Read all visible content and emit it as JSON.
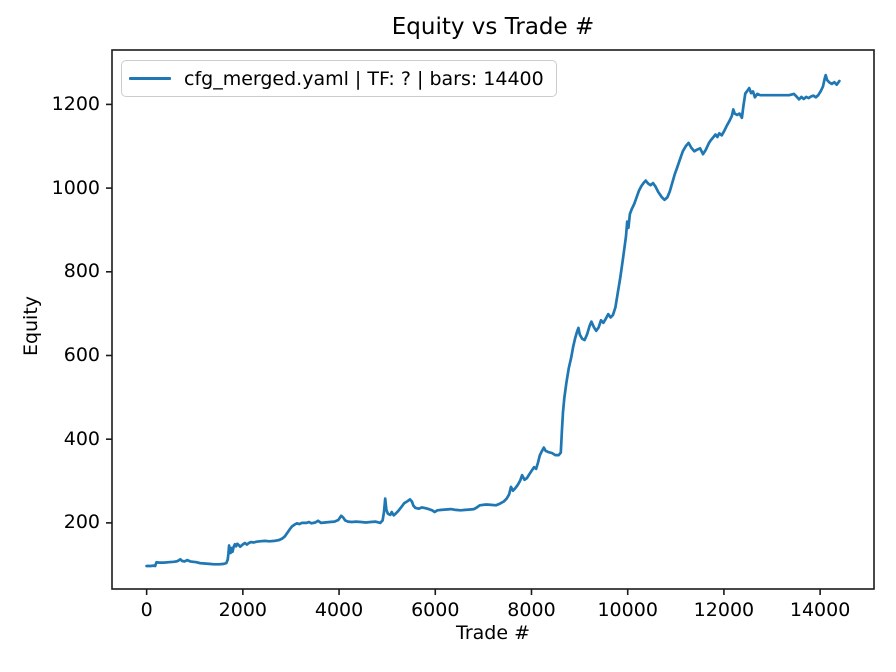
{
  "figure": {
    "background": "#ffffff",
    "text_color": "#000000",
    "spine_color": "#1a1a1a"
  },
  "chart_data": {
    "type": "line",
    "title": "Equity vs Trade #",
    "xlabel": "Trade #",
    "ylabel": "Equity",
    "grid": false,
    "legend_position": "upper left",
    "xlim": [
      -720,
      15120
    ],
    "ylim": [
      42,
      1330
    ],
    "x_ticks": [
      0,
      2000,
      4000,
      6000,
      8000,
      10000,
      12000,
      14000
    ],
    "y_ticks": [
      200,
      400,
      600,
      800,
      1000,
      1200
    ],
    "series": [
      {
        "name": "cfg_merged.yaml | TF: ? | bars: 14400",
        "color": "#1f77b4",
        "points": [
          [
            0,
            97
          ],
          [
            80,
            97
          ],
          [
            150,
            98
          ],
          [
            175,
            97
          ],
          [
            205,
            106
          ],
          [
            260,
            105
          ],
          [
            360,
            105
          ],
          [
            460,
            106
          ],
          [
            560,
            107
          ],
          [
            625,
            108
          ],
          [
            665,
            110
          ],
          [
            700,
            113
          ],
          [
            740,
            109
          ],
          [
            790,
            108
          ],
          [
            845,
            111
          ],
          [
            905,
            108
          ],
          [
            965,
            107
          ],
          [
            1035,
            106
          ],
          [
            1105,
            104
          ],
          [
            1205,
            103
          ],
          [
            1305,
            102
          ],
          [
            1405,
            101
          ],
          [
            1505,
            101
          ],
          [
            1605,
            102
          ],
          [
            1655,
            104
          ],
          [
            1685,
            112
          ],
          [
            1700,
            126
          ],
          [
            1715,
            146
          ],
          [
            1730,
            133
          ],
          [
            1745,
            128
          ],
          [
            1765,
            140
          ],
          [
            1785,
            131
          ],
          [
            1810,
            143
          ],
          [
            1835,
            149
          ],
          [
            1860,
            144
          ],
          [
            1885,
            150
          ],
          [
            1915,
            147
          ],
          [
            1945,
            143
          ],
          [
            1975,
            146
          ],
          [
            2005,
            149
          ],
          [
            2045,
            152
          ],
          [
            2085,
            148
          ],
          [
            2125,
            152
          ],
          [
            2165,
            154
          ],
          [
            2225,
            153
          ],
          [
            2285,
            155
          ],
          [
            2355,
            156
          ],
          [
            2455,
            157
          ],
          [
            2555,
            156
          ],
          [
            2655,
            157
          ],
          [
            2755,
            159
          ],
          [
            2825,
            163
          ],
          [
            2875,
            168
          ],
          [
            2925,
            176
          ],
          [
            2975,
            185
          ],
          [
            3025,
            192
          ],
          [
            3075,
            196
          ],
          [
            3125,
            199
          ],
          [
            3175,
            197
          ],
          [
            3225,
            200
          ],
          [
            3325,
            200
          ],
          [
            3375,
            202
          ],
          [
            3425,
            199
          ],
          [
            3505,
            201
          ],
          [
            3565,
            205
          ],
          [
            3625,
            200
          ],
          [
            3705,
            201
          ],
          [
            3805,
            202
          ],
          [
            3905,
            203
          ],
          [
            3985,
            207
          ],
          [
            4045,
            217
          ],
          [
            4085,
            213
          ],
          [
            4125,
            206
          ],
          [
            4185,
            203
          ],
          [
            4265,
            202
          ],
          [
            4355,
            203
          ],
          [
            4455,
            202
          ],
          [
            4555,
            201
          ],
          [
            4655,
            202
          ],
          [
            4755,
            203
          ],
          [
            4855,
            200
          ],
          [
            4905,
            206
          ],
          [
            4935,
            226
          ],
          [
            4960,
            258
          ],
          [
            4985,
            231
          ],
          [
            5015,
            222
          ],
          [
            5065,
            219
          ],
          [
            5095,
            226
          ],
          [
            5135,
            218
          ],
          [
            5175,
            222
          ],
          [
            5235,
            229
          ],
          [
            5295,
            238
          ],
          [
            5355,
            247
          ],
          [
            5425,
            252
          ],
          [
            5475,
            256
          ],
          [
            5515,
            251
          ],
          [
            5545,
            241
          ],
          [
            5585,
            236
          ],
          [
            5655,
            234
          ],
          [
            5725,
            237
          ],
          [
            5795,
            235
          ],
          [
            5865,
            233
          ],
          [
            5935,
            230
          ],
          [
            5985,
            226
          ],
          [
            6045,
            230
          ],
          [
            6125,
            231
          ],
          [
            6225,
            232
          ],
          [
            6325,
            233
          ],
          [
            6425,
            231
          ],
          [
            6525,
            230
          ],
          [
            6625,
            231
          ],
          [
            6725,
            232
          ],
          [
            6805,
            233
          ],
          [
            6865,
            237
          ],
          [
            6925,
            242
          ],
          [
            6985,
            243
          ],
          [
            7065,
            244
          ],
          [
            7165,
            243
          ],
          [
            7265,
            242
          ],
          [
            7345,
            246
          ],
          [
            7425,
            251
          ],
          [
            7485,
            258
          ],
          [
            7535,
            268
          ],
          [
            7575,
            286
          ],
          [
            7615,
            277
          ],
          [
            7665,
            283
          ],
          [
            7715,
            291
          ],
          [
            7765,
            301
          ],
          [
            7805,
            314
          ],
          [
            7855,
            303
          ],
          [
            7905,
            307
          ],
          [
            7955,
            316
          ],
          [
            8005,
            325
          ],
          [
            8055,
            333
          ],
          [
            8095,
            329
          ],
          [
            8135,
            344
          ],
          [
            8175,
            362
          ],
          [
            8215,
            371
          ],
          [
            8255,
            380
          ],
          [
            8295,
            372
          ],
          [
            8355,
            369
          ],
          [
            8425,
            367
          ],
          [
            8495,
            362
          ],
          [
            8565,
            362
          ],
          [
            8610,
            368
          ],
          [
            8632,
            420
          ],
          [
            8655,
            465
          ],
          [
            8685,
            500
          ],
          [
            8725,
            535
          ],
          [
            8775,
            570
          ],
          [
            8825,
            595
          ],
          [
            8865,
            620
          ],
          [
            8905,
            640
          ],
          [
            8945,
            656
          ],
          [
            8975,
            666
          ],
          [
            9005,
            650
          ],
          [
            9055,
            640
          ],
          [
            9105,
            637
          ],
          [
            9155,
            650
          ],
          [
            9205,
            670
          ],
          [
            9245,
            681
          ],
          [
            9295,
            668
          ],
          [
            9345,
            659
          ],
          [
            9395,
            667
          ],
          [
            9445,
            684
          ],
          [
            9495,
            678
          ],
          [
            9545,
            688
          ],
          [
            9595,
            699
          ],
          [
            9645,
            691
          ],
          [
            9695,
            697
          ],
          [
            9745,
            715
          ],
          [
            9795,
            750
          ],
          [
            9845,
            785
          ],
          [
            9895,
            825
          ],
          [
            9935,
            860
          ],
          [
            9965,
            885
          ],
          [
            9990,
            920
          ],
          [
            10015,
            905
          ],
          [
            10045,
            938
          ],
          [
            10085,
            950
          ],
          [
            10135,
            962
          ],
          [
            10185,
            978
          ],
          [
            10235,
            994
          ],
          [
            10285,
            1005
          ],
          [
            10335,
            1013
          ],
          [
            10375,
            1018
          ],
          [
            10425,
            1011
          ],
          [
            10475,
            1007
          ],
          [
            10525,
            1012
          ],
          [
            10575,
            1004
          ],
          [
            10635,
            991
          ],
          [
            10705,
            979
          ],
          [
            10765,
            972
          ],
          [
            10825,
            978
          ],
          [
            10875,
            992
          ],
          [
            10925,
            1012
          ],
          [
            10975,
            1032
          ],
          [
            11025,
            1048
          ],
          [
            11085,
            1068
          ],
          [
            11145,
            1088
          ],
          [
            11205,
            1100
          ],
          [
            11265,
            1108
          ],
          [
            11325,
            1096
          ],
          [
            11385,
            1088
          ],
          [
            11445,
            1092
          ],
          [
            11505,
            1095
          ],
          [
            11565,
            1081
          ],
          [
            11625,
            1092
          ],
          [
            11685,
            1107
          ],
          [
            11725,
            1114
          ],
          [
            11775,
            1121
          ],
          [
            11825,
            1128
          ],
          [
            11865,
            1122
          ],
          [
            11905,
            1131
          ],
          [
            11955,
            1126
          ],
          [
            12005,
            1136
          ],
          [
            12065,
            1150
          ],
          [
            12115,
            1160
          ],
          [
            12165,
            1172
          ],
          [
            12195,
            1188
          ],
          [
            12225,
            1178
          ],
          [
            12275,
            1175
          ],
          [
            12325,
            1178
          ],
          [
            12375,
            1168
          ],
          [
            12405,
            1196
          ],
          [
            12445,
            1226
          ],
          [
            12485,
            1232
          ],
          [
            12525,
            1239
          ],
          [
            12565,
            1227
          ],
          [
            12605,
            1231
          ],
          [
            12645,
            1217
          ],
          [
            12695,
            1225
          ],
          [
            12755,
            1222
          ],
          [
            12955,
            1222
          ],
          [
            13155,
            1222
          ],
          [
            13355,
            1222
          ],
          [
            13455,
            1225
          ],
          [
            13510,
            1219
          ],
          [
            13560,
            1212
          ],
          [
            13610,
            1218
          ],
          [
            13660,
            1213
          ],
          [
            13710,
            1218
          ],
          [
            13760,
            1215
          ],
          [
            13810,
            1219
          ],
          [
            13860,
            1221
          ],
          [
            13910,
            1217
          ],
          [
            13960,
            1222
          ],
          [
            14010,
            1231
          ],
          [
            14060,
            1243
          ],
          [
            14095,
            1262
          ],
          [
            14115,
            1270
          ],
          [
            14145,
            1258
          ],
          [
            14195,
            1252
          ],
          [
            14245,
            1249
          ],
          [
            14295,
            1253
          ],
          [
            14345,
            1247
          ],
          [
            14400,
            1256
          ]
        ]
      }
    ]
  }
}
